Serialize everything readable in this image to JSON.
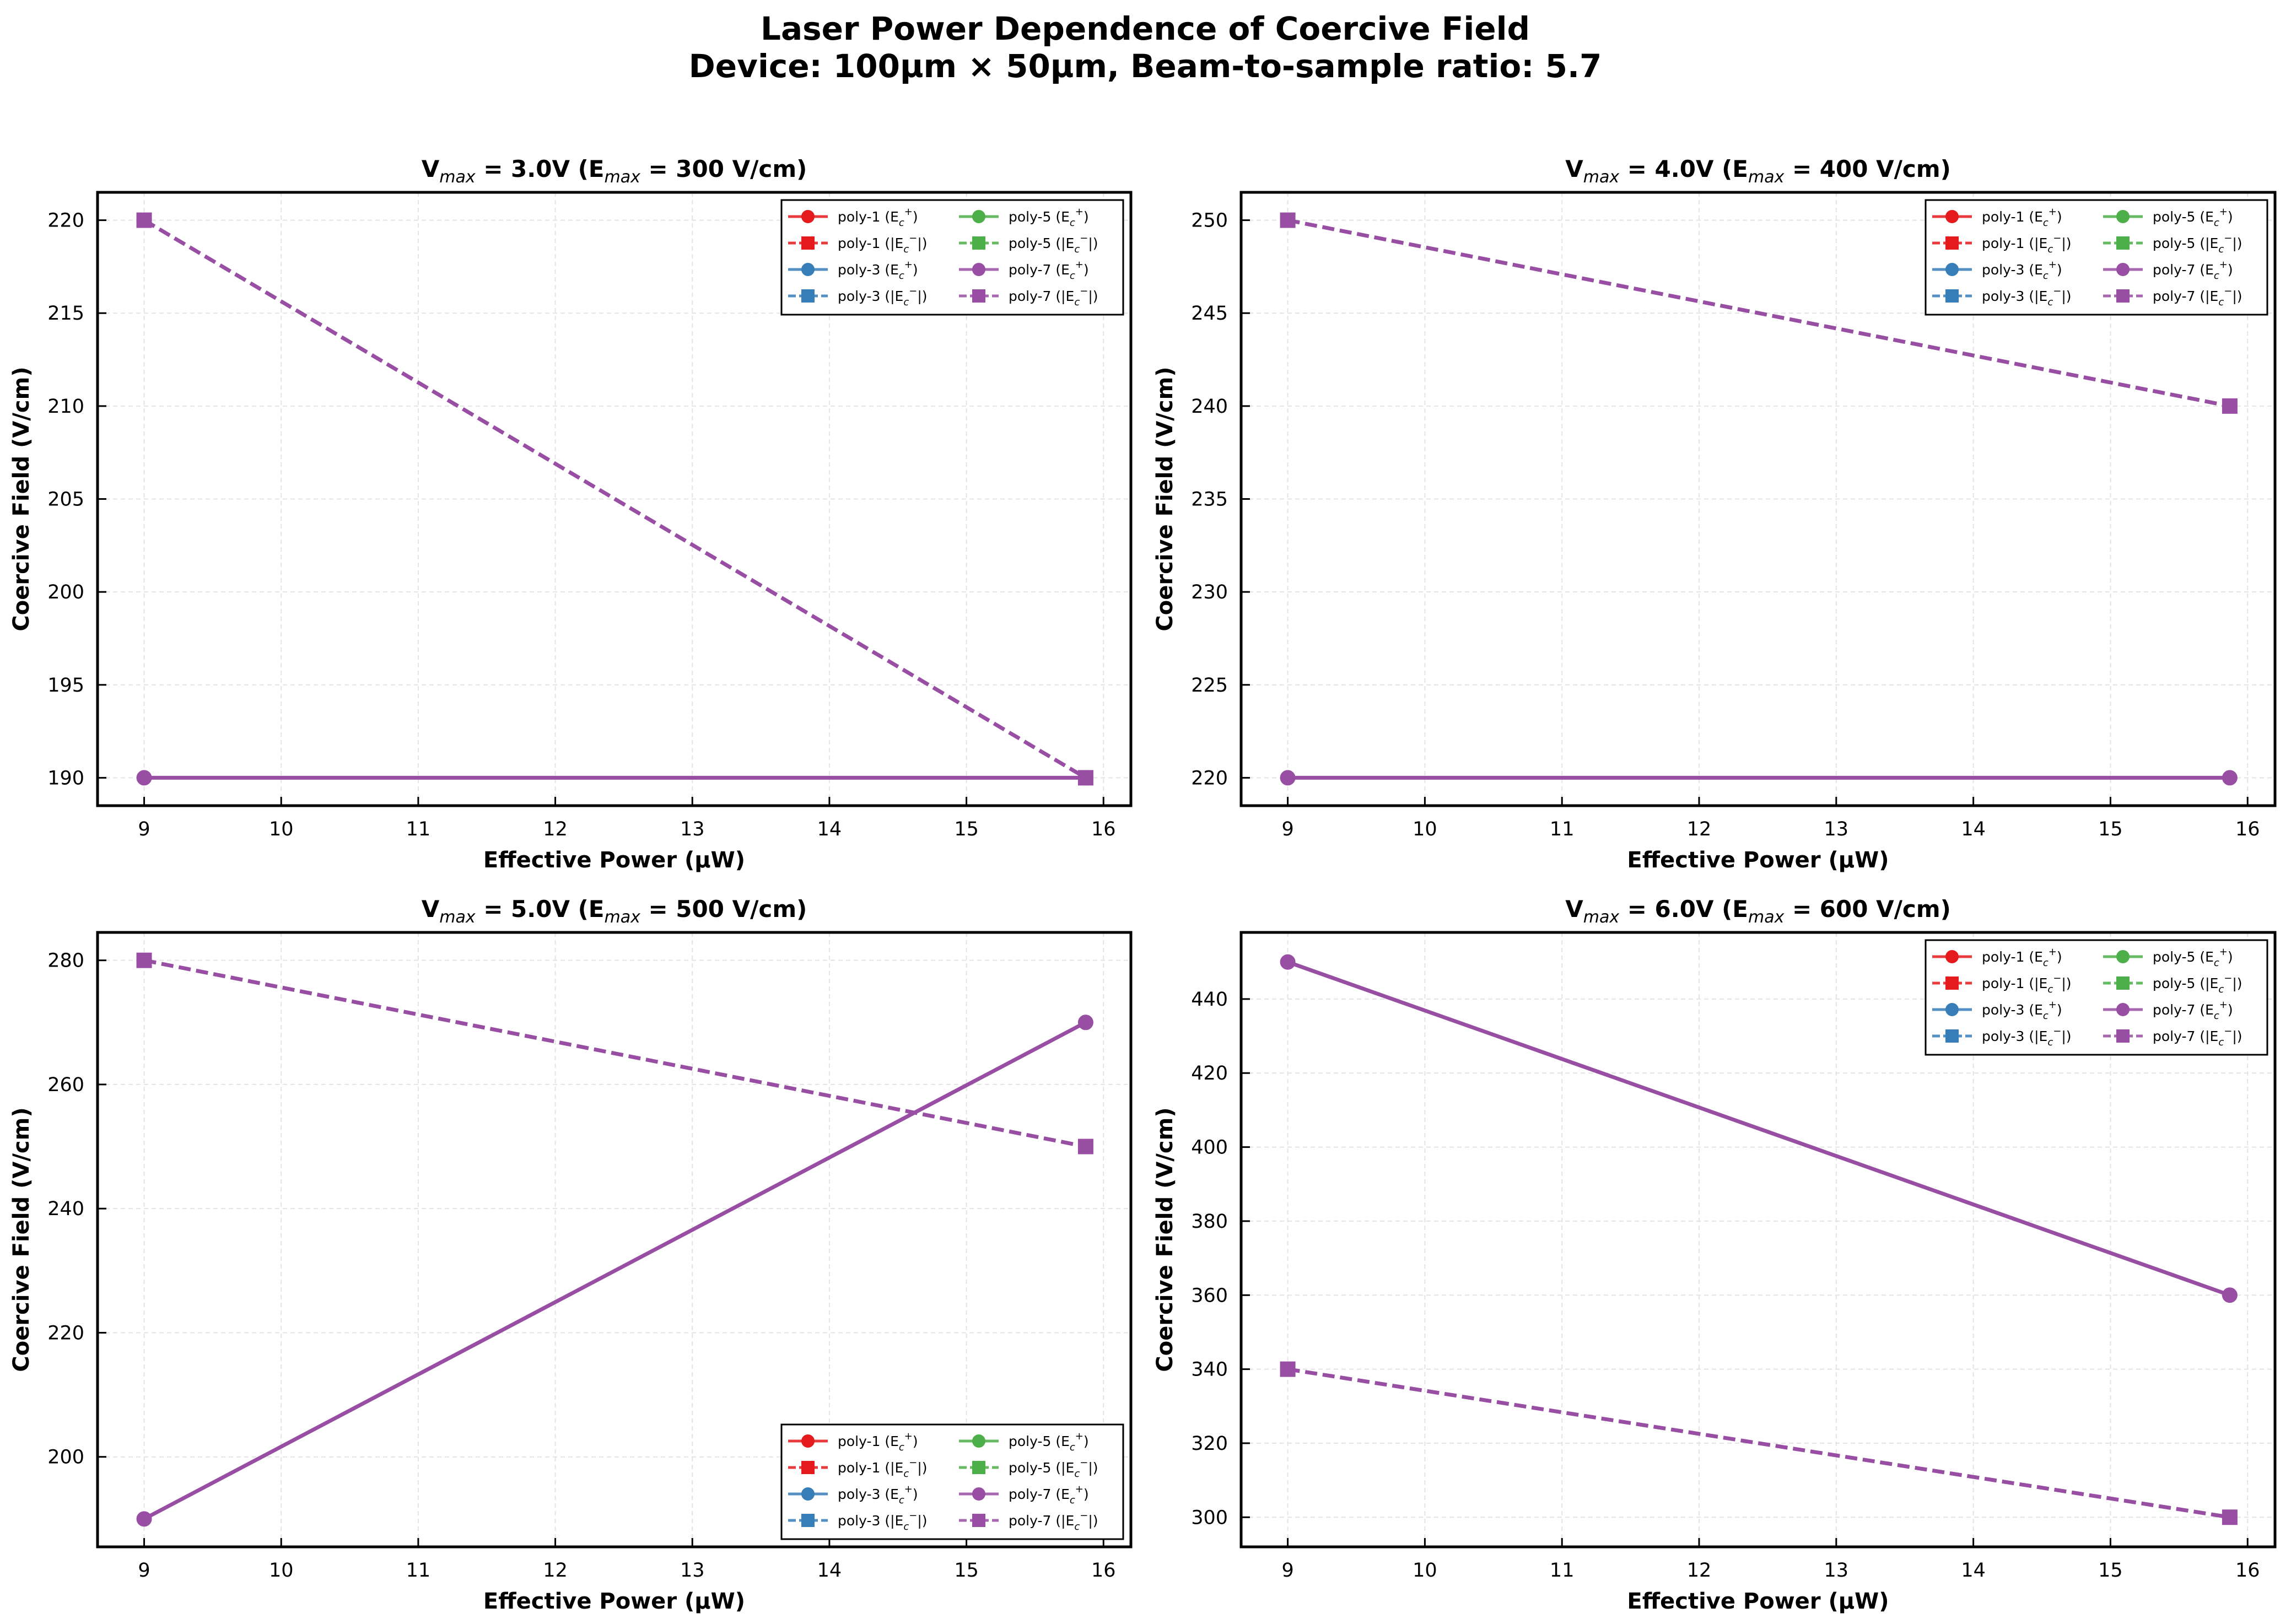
{
  "figure": {
    "title_line1": "Laser Power Dependence of Coercive Field",
    "title_line2": "Device: 100µm × 50µm, Beam-to-sample ratio: 5.7"
  },
  "legend_entries": [
    {
      "series": "poly-1",
      "kind": "E+",
      "marker": "circle",
      "dash": "solid",
      "color": "#e41a1c"
    },
    {
      "series": "poly-1",
      "kind": "E-",
      "marker": "square",
      "dash": "dashed",
      "color": "#e41a1c"
    },
    {
      "series": "poly-3",
      "kind": "E+",
      "marker": "circle",
      "dash": "solid",
      "color": "#377eb8"
    },
    {
      "series": "poly-3",
      "kind": "E-",
      "marker": "square",
      "dash": "dashed",
      "color": "#377eb8"
    },
    {
      "series": "poly-5",
      "kind": "E+",
      "marker": "circle",
      "dash": "solid",
      "color": "#4daf4a"
    },
    {
      "series": "poly-5",
      "kind": "E-",
      "marker": "square",
      "dash": "dashed",
      "color": "#4daf4a"
    },
    {
      "series": "poly-7",
      "kind": "E+",
      "marker": "circle",
      "dash": "solid",
      "color": "#984ea3"
    },
    {
      "series": "poly-7",
      "kind": "E-",
      "marker": "square",
      "dash": "dashed",
      "color": "#984ea3"
    }
  ],
  "chart_data": [
    {
      "type": "line",
      "title": {
        "vmax": "3.0V",
        "emax": "300 V/cm"
      },
      "xlabel": "Effective Power (µW)",
      "ylabel": "Coercive Field (V/cm)",
      "xlim": [
        8.66,
        16.2
      ],
      "ylim": [
        188.5,
        221.5
      ],
      "xticks": [
        9,
        10,
        11,
        12,
        13,
        14,
        15,
        16
      ],
      "yticks": [
        190,
        195,
        200,
        205,
        210,
        215,
        220
      ],
      "grid": true,
      "legend_position": "upper right",
      "series": [
        {
          "name": "poly-7 (E+)",
          "color": "#984ea3",
          "dash": "solid",
          "marker": "circle",
          "x": [
            9.0,
            15.87
          ],
          "y": [
            190,
            190
          ]
        },
        {
          "name": "poly-7 (|E-|)",
          "color": "#984ea3",
          "dash": "dashed",
          "marker": "square",
          "x": [
            9.0,
            15.87
          ],
          "y": [
            220,
            190
          ]
        }
      ]
    },
    {
      "type": "line",
      "title": {
        "vmax": "4.0V",
        "emax": "400 V/cm"
      },
      "xlabel": "Effective Power (µW)",
      "ylabel": "Coercive Field (V/cm)",
      "xlim": [
        8.66,
        16.2
      ],
      "ylim": [
        218.5,
        251.5
      ],
      "xticks": [
        9,
        10,
        11,
        12,
        13,
        14,
        15,
        16
      ],
      "yticks": [
        220,
        225,
        230,
        235,
        240,
        245,
        250
      ],
      "grid": true,
      "legend_position": "upper right",
      "series": [
        {
          "name": "poly-7 (E+)",
          "color": "#984ea3",
          "dash": "solid",
          "marker": "circle",
          "x": [
            9.0,
            15.87
          ],
          "y": [
            220,
            220
          ]
        },
        {
          "name": "poly-7 (|E-|)",
          "color": "#984ea3",
          "dash": "dashed",
          "marker": "square",
          "x": [
            9.0,
            15.87
          ],
          "y": [
            250,
            240
          ]
        }
      ]
    },
    {
      "type": "line",
      "title": {
        "vmax": "5.0V",
        "emax": "500 V/cm"
      },
      "xlabel": "Effective Power (µW)",
      "ylabel": "Coercive Field (V/cm)",
      "xlim": [
        8.66,
        16.2
      ],
      "ylim": [
        185.5,
        284.5
      ],
      "xticks": [
        9,
        10,
        11,
        12,
        13,
        14,
        15,
        16
      ],
      "yticks": [
        200,
        220,
        240,
        260,
        280
      ],
      "grid": true,
      "legend_position": "lower right",
      "series": [
        {
          "name": "poly-7 (E+)",
          "color": "#984ea3",
          "dash": "solid",
          "marker": "circle",
          "x": [
            9.0,
            15.87
          ],
          "y": [
            190,
            270
          ]
        },
        {
          "name": "poly-7 (|E-|)",
          "color": "#984ea3",
          "dash": "dashed",
          "marker": "square",
          "x": [
            9.0,
            15.87
          ],
          "y": [
            280,
            250
          ]
        }
      ]
    },
    {
      "type": "line",
      "title": {
        "vmax": "6.0V",
        "emax": "600 V/cm"
      },
      "xlabel": "Effective Power (µW)",
      "ylabel": "Coercive Field (V/cm)",
      "xlim": [
        8.66,
        16.2
      ],
      "ylim": [
        292,
        458
      ],
      "xticks": [
        9,
        10,
        11,
        12,
        13,
        14,
        15,
        16
      ],
      "yticks": [
        300,
        320,
        340,
        360,
        380,
        400,
        420,
        440
      ],
      "grid": true,
      "legend_position": "upper right",
      "series": [
        {
          "name": "poly-7 (E+)",
          "color": "#984ea3",
          "dash": "solid",
          "marker": "circle",
          "x": [
            9.0,
            15.87
          ],
          "y": [
            450,
            360
          ]
        },
        {
          "name": "poly-7 (|E-|)",
          "color": "#984ea3",
          "dash": "dashed",
          "marker": "square",
          "x": [
            9.0,
            15.87
          ],
          "y": [
            340,
            300
          ]
        }
      ]
    }
  ]
}
